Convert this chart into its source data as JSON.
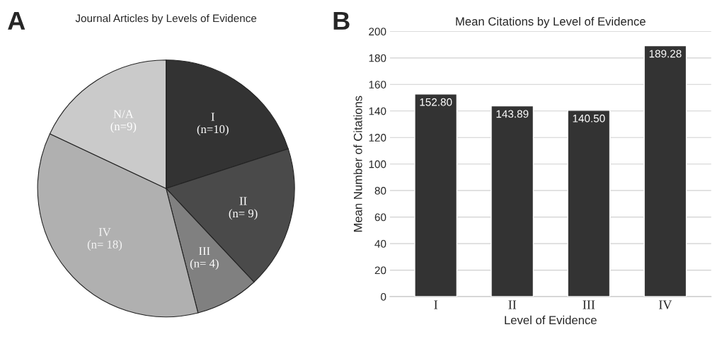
{
  "chart_data": [
    {
      "type": "pie",
      "title": "Journal Articles by Levels of Evidence",
      "categories": [
        "I",
        "II",
        "III",
        "IV",
        "N/A"
      ],
      "values": [
        10,
        9,
        4,
        18,
        9
      ],
      "value_labels": [
        "(n=10)",
        "(n= 9)",
        "(n= 4)",
        "(n= 18)",
        "(n=9)"
      ],
      "colors": [
        "#333333",
        "#4a4a4a",
        "#808080",
        "#b0b0b0",
        "#cacaca"
      ],
      "annotations": [
        "A"
      ]
    },
    {
      "type": "bar",
      "title": "Mean Citations by Level of Evidence",
      "xlabel": "Level of Evidence",
      "ylabel": "Mean Number of Citations",
      "categories": [
        "I",
        "II",
        "III",
        "IV"
      ],
      "values": [
        152.8,
        143.89,
        140.5,
        189.28
      ],
      "value_labels": [
        "152.80",
        "143.89",
        "140.50",
        "189.28"
      ],
      "color": "#333333",
      "ylim": [
        0,
        200
      ],
      "yticks": [
        0,
        20,
        40,
        60,
        80,
        100,
        120,
        140,
        160,
        180,
        200
      ],
      "grid": "y",
      "annotations": [
        "B"
      ]
    }
  ]
}
